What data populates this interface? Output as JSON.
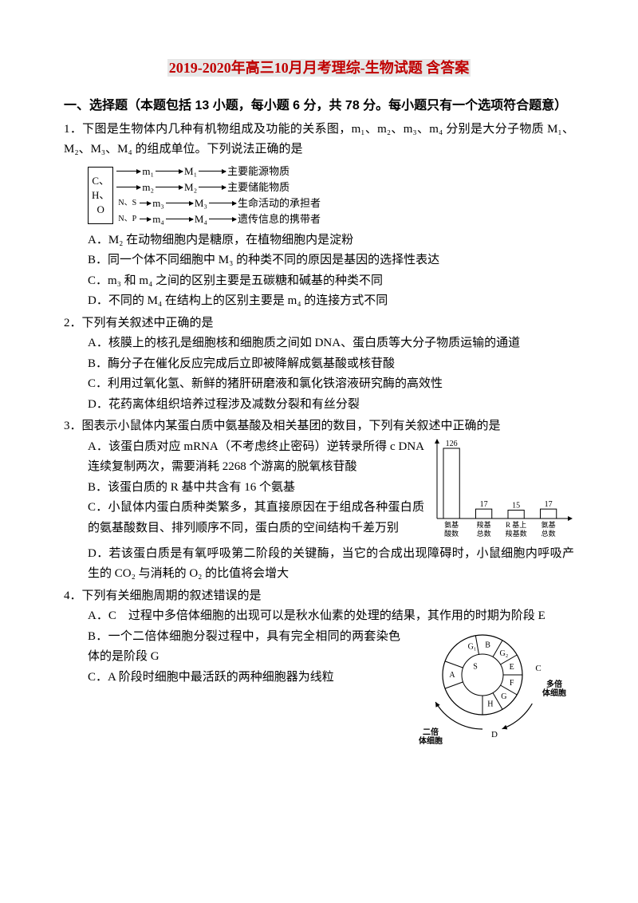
{
  "title": {
    "text": "2019-2020年高三10月月考理综-生物试题 含答案",
    "color": "#c00000",
    "bg": "#e6e6e6"
  },
  "section1_header": "一、选择题（本题包括 13 小题，每小题 6 分，共 78 分。每小题只有一个选项符合题意）",
  "q1": {
    "stem": "1．下图是生物体内几种有机物组成及功能的关系图，m₁、m₂、m₃、m₄ 分别是大分子物质 M₁、M₂、M₃、M₄ 的组成单位。下列说法正确的是",
    "fig": {
      "box": [
        "C、",
        "H、",
        "O"
      ],
      "rows": [
        {
          "pre": "",
          "m": "m₁",
          "M": "M₁",
          "label": "主要能源物质"
        },
        {
          "pre": "",
          "m": "m₂",
          "M": "M₂",
          "label": "主要储能物质"
        },
        {
          "pre": "N、S",
          "m": "m₃",
          "M": "M₃",
          "label": "生命活动的承担者"
        },
        {
          "pre": "N、P",
          "m": "m₄",
          "M": "M₄",
          "label": "遗传信息的携带者"
        }
      ]
    },
    "A": "A．M₂ 在动物细胞内是糖原，在植物细胞内是淀粉",
    "B": "B．同一个体不同细胞中 M₃ 的种类不同的原因是基因的选择性表达",
    "C": "C．m₃ 和 m₄ 之间的区别主要是五碳糖和碱基的种类不同",
    "D": "D．不同的 M₄ 在结构上的区别主要是 m₄ 的连接方式不同"
  },
  "q2": {
    "stem": "2．下列有关叙述中正确的是",
    "A": "A．核膜上的核孔是细胞核和细胞质之间如 DNA、蛋白质等大分子物质运输的通道",
    "B": "B．酶分子在催化反应完成后立即被降解成氨基酸或核苷酸",
    "C": "C．利用过氧化氢、新鲜的猪肝研磨液和氯化铁溶液研究酶的高效性",
    "D": "D．花药离体组织培养过程涉及减数分裂和有丝分裂"
  },
  "q3": {
    "stem": "3．图表示小鼠体内某蛋白质中氨基酸及相关基团的数目，下列有关叙述中正确的是",
    "A": "A．该蛋白质对应 mRNA（不考虑终止密码）逆转录所得 c DNA 连续复制两次，需要消耗 2268 个游离的脱氧核苷酸",
    "B": "B．该蛋白质的 R 基中共含有 16 个氨基",
    "C": "C．小鼠体内蛋白质种类繁多，其直接原因在于组成各种蛋白质的氨基酸数目、排列顺序不同，蛋白质的空间结构千差万别",
    "D": "D．若该蛋白质是有氧呼吸第二阶段的关键酶，当它的合成出现障碍时，小鼠细胞内呼吸产生的 CO₂ 与消耗的 O₂ 的比值将会增大",
    "chart": {
      "type": "bar",
      "categories": [
        "氨基\n酸数",
        "羧基\n总数",
        "R 基上\n羧基数",
        "氨基\n总数"
      ],
      "values": [
        126,
        17,
        15,
        17
      ],
      "bar_color": "#ffffff",
      "bar_border": "#000000",
      "value_labels": [
        "126",
        "17",
        "15",
        "17"
      ],
      "axis_color": "#000000",
      "width": 180,
      "height": 130
    }
  },
  "q4": {
    "stem": "4．下列有关细胞周期的叙述错误的是",
    "A": "A．C　过程中多倍体细胞的出现可以是秋水仙素的处理的结果，其作用的时期为阶段 E",
    "B": "B．一个二倍体细胞分裂过程中，具有完全相同的两套染色体的是阶段 G",
    "C": "C．A 阶段时细胞中最活跃的两种细胞器为线粒",
    "diagram": {
      "labels_outer": [
        "A",
        "S",
        "B",
        "G₁",
        "G₂",
        "E",
        "F",
        "G",
        "H"
      ],
      "arrows": [
        "C",
        "D"
      ],
      "side_labels": [
        "多倍\n体细胞",
        "二倍\n体细胞"
      ]
    }
  }
}
